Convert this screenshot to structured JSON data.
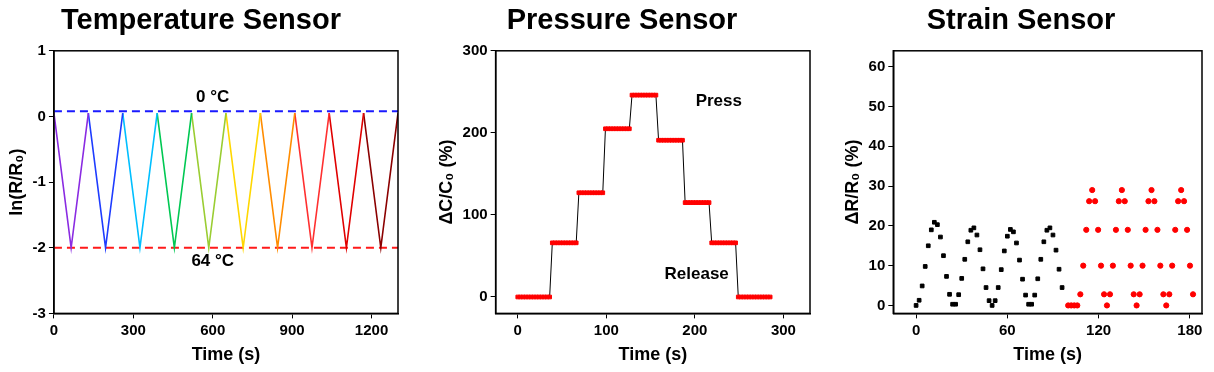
{
  "chart_data": [
    {
      "type": "line",
      "title": "Temperature Sensor",
      "xlabel": "Time (s)",
      "ylabel": "ln(R/R₀)",
      "xlim": [
        0,
        1300
      ],
      "xticks": [
        0,
        300,
        600,
        900,
        1200
      ],
      "ylim": [
        -3,
        1
      ],
      "yticks": [
        -3,
        -2,
        -1,
        0,
        1
      ],
      "grid": false,
      "series": [
        {
          "color": "#8a2be2",
          "x": [
            0,
            65,
            130
          ],
          "values": [
            0.05,
            -2,
            0.05
          ]
        },
        {
          "color": "#1e3cff",
          "x": [
            130,
            195,
            260
          ],
          "values": [
            0.05,
            -2,
            0.05
          ]
        },
        {
          "color": "#00bfff",
          "x": [
            260,
            325,
            390
          ],
          "values": [
            0.05,
            -2,
            0.05
          ]
        },
        {
          "color": "#00c853",
          "x": [
            390,
            455,
            520
          ],
          "values": [
            0.05,
            -2,
            0.05
          ]
        },
        {
          "color": "#9acd32",
          "x": [
            520,
            585,
            650
          ],
          "values": [
            0.05,
            -2,
            0.05
          ]
        },
        {
          "color": "#ffd700",
          "x": [
            650,
            715,
            780
          ],
          "values": [
            0.05,
            -2,
            0.05
          ]
        },
        {
          "color": "#ff8c00",
          "x": [
            780,
            845,
            910
          ],
          "values": [
            0.05,
            -2,
            0.05
          ]
        },
        {
          "color": "#ff3030",
          "x": [
            910,
            975,
            1040
          ],
          "values": [
            0.05,
            -2,
            0.05
          ]
        },
        {
          "color": "#e00000",
          "x": [
            1040,
            1105,
            1170
          ],
          "values": [
            0.05,
            -2,
            0.05
          ]
        },
        {
          "color": "#8b0000",
          "x": [
            1170,
            1235,
            1300
          ],
          "values": [
            0.05,
            -2,
            0.05
          ]
        }
      ],
      "annotations": [
        {
          "text": "0 °C",
          "x": 600,
          "y": 0.08,
          "color": "#1a1aff",
          "line_style": "dashed"
        },
        {
          "text": "64 °C",
          "x": 600,
          "y": -2,
          "color": "#ff1a1a",
          "line_style": "dashed"
        }
      ]
    },
    {
      "type": "line",
      "title": "Pressure Sensor",
      "xlabel": "Time (s)",
      "ylabel": "ΔC/C₀ (%)",
      "xlim": [
        -25,
        330
      ],
      "xticks": [
        0,
        100,
        200,
        300
      ],
      "ylim": [
        -20,
        300
      ],
      "yticks": [
        0,
        100,
        200,
        300
      ],
      "grid": false,
      "series": [
        {
          "color": "#ff0000",
          "marker": "square",
          "x": [
            0,
            3,
            6,
            9,
            12,
            15,
            18,
            21,
            24,
            27,
            30,
            33,
            36,
            39,
            42,
            45,
            48,
            51,
            54,
            57,
            60,
            63,
            66,
            69,
            72,
            75,
            78,
            81,
            84,
            87,
            90,
            93,
            96,
            99,
            102,
            105,
            108,
            111,
            114,
            117,
            120,
            123,
            126,
            129,
            132,
            135,
            138,
            141,
            144,
            147,
            150,
            153,
            156,
            159,
            162,
            165,
            168,
            171,
            174,
            177,
            180,
            183,
            186,
            189,
            192,
            195,
            198,
            201,
            204,
            207,
            210,
            213,
            216,
            219,
            222,
            225,
            228,
            231,
            234,
            237,
            240,
            243,
            246,
            249,
            252,
            255,
            258,
            261,
            264,
            267,
            270,
            273,
            276,
            279,
            282,
            285
          ],
          "values": [
            0,
            0,
            0,
            0,
            0,
            0,
            0,
            0,
            0,
            0,
            0,
            0,
            0,
            66,
            66,
            66,
            66,
            66,
            66,
            66,
            66,
            66,
            66,
            127,
            127,
            127,
            127,
            127,
            127,
            127,
            127,
            127,
            127,
            205,
            205,
            205,
            205,
            205,
            205,
            205,
            205,
            205,
            205,
            246,
            246,
            246,
            246,
            246,
            246,
            246,
            246,
            246,
            246,
            191,
            191,
            191,
            191,
            191,
            191,
            191,
            191,
            191,
            191,
            115,
            115,
            115,
            115,
            115,
            115,
            115,
            115,
            115,
            115,
            66,
            66,
            66,
            66,
            66,
            66,
            66,
            66,
            66,
            66,
            0,
            0,
            0,
            0,
            0,
            0,
            0,
            0,
            0,
            0,
            0,
            0,
            0
          ]
        }
      ],
      "annotations": [
        {
          "text": "Press",
          "x": 227,
          "y": 238
        },
        {
          "text": "Release",
          "x": 202,
          "y": 28
        }
      ]
    },
    {
      "type": "scatter",
      "title": "Strain Sensor",
      "xlabel": "Time (s)",
      "ylabel": "ΔR/R₀ (%)",
      "xlim": [
        -15,
        188
      ],
      "xticks": [
        0,
        60,
        120,
        180
      ],
      "ylim": [
        -2,
        64
      ],
      "yticks": [
        0,
        10,
        20,
        30,
        40,
        50,
        60
      ],
      "grid": false,
      "series": [
        {
          "color": "#000000",
          "marker": "square",
          "x": [
            0,
            2,
            4,
            6,
            8,
            10,
            12,
            14,
            16,
            18,
            20,
            22,
            24,
            26,
            28,
            30,
            32,
            34,
            36,
            38,
            40,
            42,
            44,
            46,
            48,
            50,
            52,
            54,
            56,
            58,
            60,
            62,
            64,
            66,
            68,
            70,
            72,
            74,
            76,
            78,
            80,
            82,
            84,
            86,
            88,
            90,
            92,
            94,
            96
          ],
          "values": [
            0,
            1.3,
            4.9,
            9.8,
            15.0,
            19.0,
            20.9,
            20.3,
            17.2,
            12.5,
            7.3,
            2.8,
            0.3,
            0.3,
            2.7,
            6.8,
            11.6,
            16.0,
            18.9,
            19.5,
            17.7,
            14.0,
            9.2,
            4.5,
            1.2,
            0,
            1.2,
            4.5,
            9.0,
            13.7,
            17.4,
            19.1,
            18.5,
            15.7,
            11.4,
            6.6,
            2.6,
            0.3,
            0.3,
            2.6,
            6.7,
            11.6,
            16.0,
            18.9,
            19.5,
            17.7,
            13.9,
            9.1,
            4.5
          ]
        },
        {
          "color": "#ff0000",
          "marker": "circle",
          "x": [
            100,
            102,
            104,
            106.0,
            108.0,
            109.9,
            111.9,
            113.8,
            115.8,
            117.7,
            119.7,
            121.6,
            123.6,
            125.5,
            127.5,
            129.4,
            131.4,
            133.3,
            135.3,
            137.2,
            139.2,
            141.1,
            143.1,
            145.0,
            147.0,
            148.9,
            150.9,
            152.8,
            154.8,
            156.7,
            158.7,
            160.6,
            162.6,
            164.5,
            166.5,
            168.4,
            170.4,
            172.3,
            174.3,
            176.2,
            178.2,
            180.1,
            182.1
          ],
          "values": [
            0,
            0,
            0,
            0,
            2.8,
            10,
            19,
            26.2,
            29,
            26.2,
            19,
            10,
            2.8,
            0,
            2.8,
            10,
            19,
            26.2,
            29,
            26.2,
            19,
            10,
            2.8,
            0,
            2.8,
            10,
            19,
            26.2,
            29,
            26.2,
            19,
            10,
            2.8,
            0,
            2.8,
            10,
            19,
            26.2,
            29,
            26.2,
            19,
            10,
            2.8
          ]
        }
      ]
    }
  ]
}
